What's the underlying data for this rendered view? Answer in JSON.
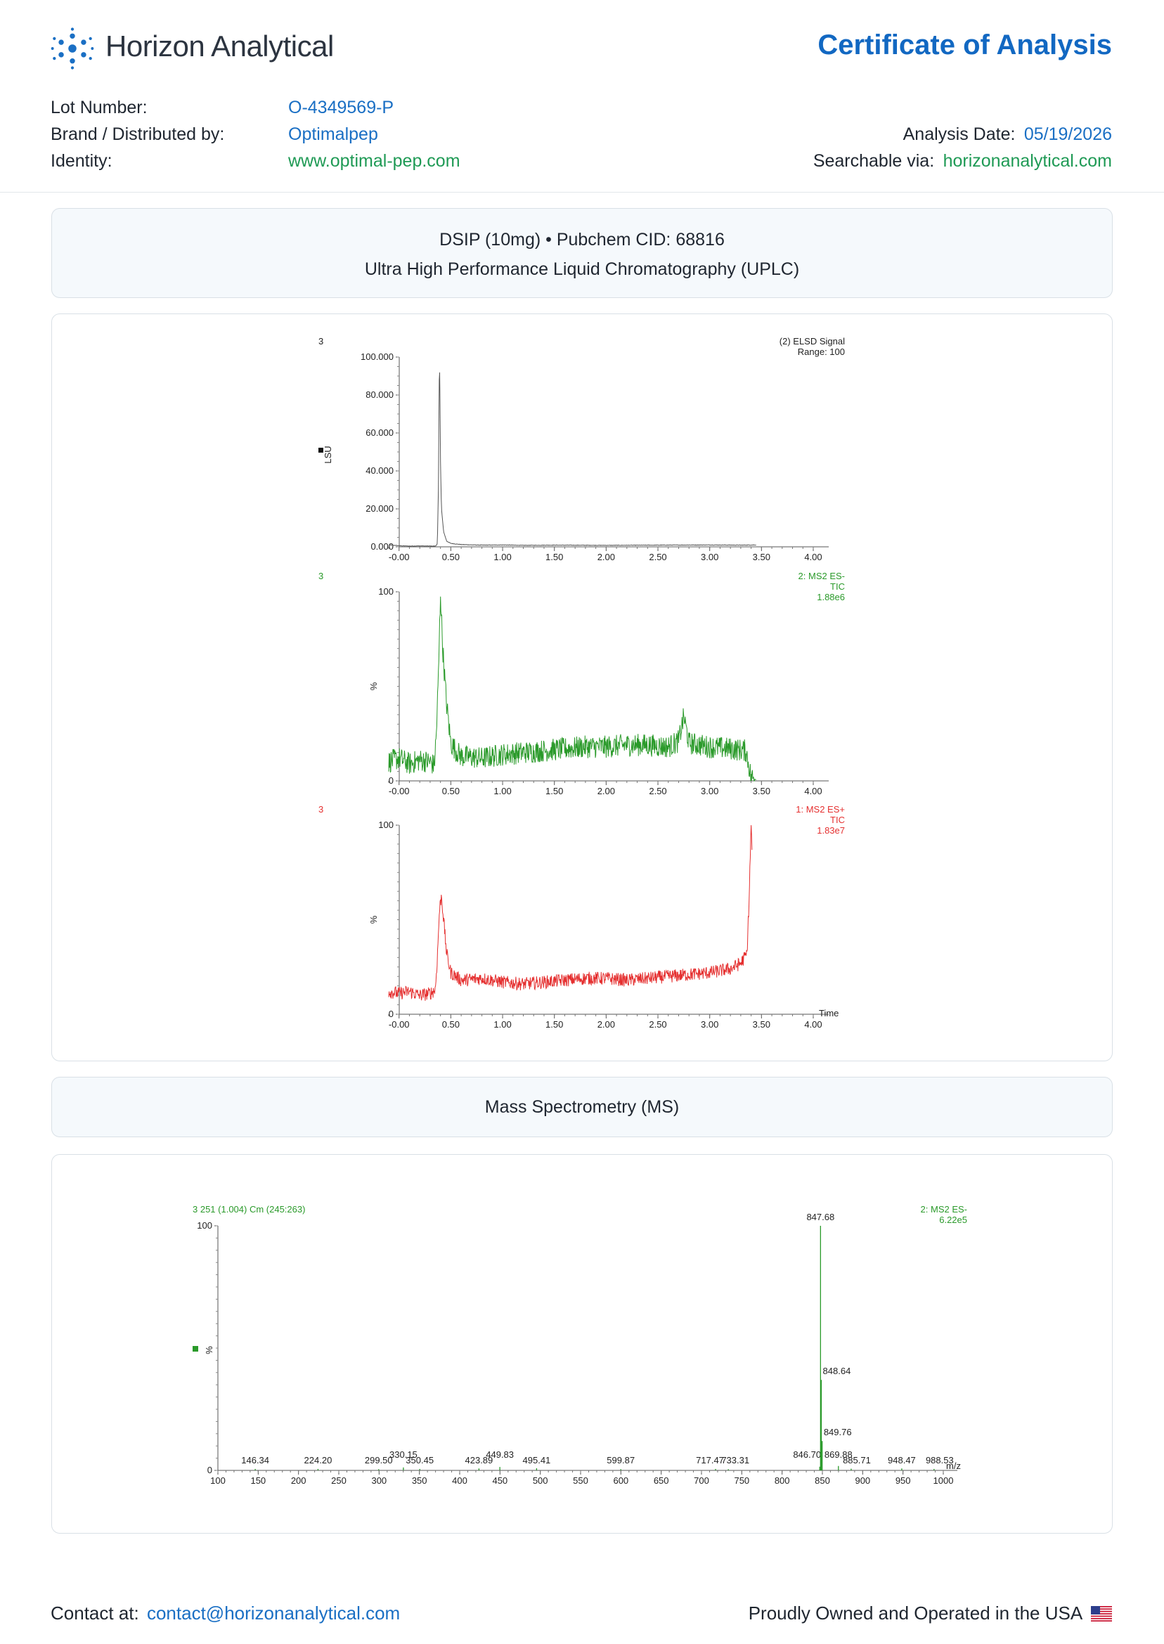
{
  "header": {
    "company": "Horizon Analytical",
    "doc_title": "Certificate of Analysis",
    "logo_icon": "molecule-dots-icon",
    "fields": {
      "lot_label": "Lot Number:",
      "lot_value": "O-4349569-P",
      "brand_label": "Brand / Distributed by:",
      "brand_value": "Optimalpep",
      "identity_label": "Identity:",
      "identity_value": "www.optimal-pep.com",
      "date_label": "Analysis Date:",
      "date_value": "05/19/2026",
      "search_label": "Searchable via:",
      "search_value": "horizonanalytical.com"
    }
  },
  "uplc": {
    "line1": "DSIP (10mg) • Pubchem CID: 68816",
    "line2": "Ultra High Performance Liquid Chromatography (UPLC)"
  },
  "ms_title": "Mass Spectrometry (MS)",
  "footer": {
    "contact_label": "Contact at:",
    "contact_email": "contact@horizonanalytical.com",
    "usa_text": "Proudly Owned and Operated in the USA",
    "flag_icon": "us-flag-icon"
  },
  "colors": {
    "accent_blue": "#1268c2",
    "green": "#1f9a55",
    "elsd_trace": "#555555",
    "ms_neg_trace": "#2a9a2a",
    "ms_pos_trace": "#e53030"
  },
  "chart_data": [
    {
      "type": "line",
      "id": "elsd",
      "scan_label": "3",
      "right_labels": [
        "(2) ELSD Signal",
        "Range: 100"
      ],
      "ylabel": "LSU",
      "xlim": [
        -0.1,
        4.0
      ],
      "ylim": [
        0,
        100
      ],
      "x_ticks": [
        "-0.00",
        "0.50",
        "1.00",
        "1.50",
        "2.00",
        "2.50",
        "3.00",
        "3.50",
        "4.00"
      ],
      "y_ticks": [
        "0.000",
        "20.000",
        "40.000",
        "60.000",
        "80.000",
        "100.000"
      ],
      "points": [
        [
          -0.1,
          1.0
        ],
        [
          0.0,
          0.6
        ],
        [
          0.1,
          0.4
        ],
        [
          0.2,
          0.5
        ],
        [
          0.3,
          0.4
        ],
        [
          0.35,
          0.4
        ],
        [
          0.37,
          1.5
        ],
        [
          0.38,
          30
        ],
        [
          0.385,
          70
        ],
        [
          0.39,
          100
        ],
        [
          0.395,
          80
        ],
        [
          0.4,
          45
        ],
        [
          0.41,
          20
        ],
        [
          0.43,
          8
        ],
        [
          0.46,
          3
        ],
        [
          0.5,
          1.8
        ],
        [
          0.6,
          1.2
        ],
        [
          0.8,
          0.9
        ],
        [
          1.0,
          1.0
        ],
        [
          1.2,
          0.8
        ],
        [
          1.5,
          0.9
        ],
        [
          2.0,
          0.8
        ],
        [
          2.5,
          0.9
        ],
        [
          3.0,
          1.0
        ],
        [
          3.3,
          0.9
        ],
        [
          3.45,
          1.0
        ]
      ]
    },
    {
      "type": "line",
      "id": "ms-neg-tic",
      "scan_label": "3",
      "right_labels": [
        "2: MS2 ES-",
        "TIC",
        "1.88e6"
      ],
      "ylabel": "%",
      "xlim": [
        -0.1,
        4.0
      ],
      "ylim": [
        0,
        100
      ],
      "x_ticks": [
        "-0.00",
        "0.50",
        "1.00",
        "1.50",
        "2.00",
        "2.50",
        "3.00",
        "3.50",
        "4.00"
      ],
      "y_ticks": [
        "0",
        "100"
      ],
      "points": [
        [
          -0.1,
          10
        ],
        [
          0.0,
          12
        ],
        [
          0.1,
          9
        ],
        [
          0.2,
          11
        ],
        [
          0.3,
          10
        ],
        [
          0.34,
          8
        ],
        [
          0.36,
          25
        ],
        [
          0.38,
          55
        ],
        [
          0.4,
          100
        ],
        [
          0.42,
          72
        ],
        [
          0.44,
          55
        ],
        [
          0.46,
          40
        ],
        [
          0.48,
          30
        ],
        [
          0.5,
          20
        ],
        [
          0.55,
          16
        ],
        [
          0.6,
          13
        ],
        [
          0.8,
          12
        ],
        [
          1.0,
          14
        ],
        [
          1.2,
          15
        ],
        [
          1.4,
          16
        ],
        [
          1.6,
          17
        ],
        [
          1.8,
          18
        ],
        [
          2.0,
          18
        ],
        [
          2.2,
          19
        ],
        [
          2.4,
          19
        ],
        [
          2.6,
          18
        ],
        [
          2.7,
          21
        ],
        [
          2.75,
          34
        ],
        [
          2.8,
          20
        ],
        [
          3.0,
          18
        ],
        [
          3.2,
          17
        ],
        [
          3.35,
          16
        ],
        [
          3.4,
          2
        ],
        [
          3.45,
          0.5
        ]
      ],
      "noise_amplitude": 6
    },
    {
      "type": "line",
      "id": "ms-pos-tic",
      "scan_label": "3",
      "right_labels": [
        "1: MS2 ES+",
        "TIC",
        "1.83e7"
      ],
      "ylabel": "%",
      "xlabel": "Time",
      "xlim": [
        -0.1,
        4.0
      ],
      "ylim": [
        0,
        100
      ],
      "x_ticks": [
        "-0.00",
        "0.50",
        "1.00",
        "1.50",
        "2.00",
        "2.50",
        "3.00",
        "3.50",
        "4.00"
      ],
      "y_ticks": [
        "0",
        "100"
      ],
      "points": [
        [
          -0.1,
          12
        ],
        [
          0.0,
          11
        ],
        [
          0.1,
          12
        ],
        [
          0.2,
          10
        ],
        [
          0.3,
          11
        ],
        [
          0.35,
          13
        ],
        [
          0.37,
          30
        ],
        [
          0.39,
          55
        ],
        [
          0.41,
          63
        ],
        [
          0.43,
          50
        ],
        [
          0.46,
          32
        ],
        [
          0.5,
          22
        ],
        [
          0.6,
          18
        ],
        [
          0.8,
          19
        ],
        [
          1.0,
          17
        ],
        [
          1.2,
          16
        ],
        [
          1.4,
          17
        ],
        [
          1.6,
          18
        ],
        [
          1.8,
          19
        ],
        [
          2.0,
          19
        ],
        [
          2.2,
          18
        ],
        [
          2.4,
          19
        ],
        [
          2.6,
          20
        ],
        [
          2.8,
          21
        ],
        [
          3.0,
          22
        ],
        [
          3.2,
          24
        ],
        [
          3.3,
          27
        ],
        [
          3.36,
          32
        ],
        [
          3.38,
          60
        ],
        [
          3.4,
          100
        ],
        [
          3.41,
          85
        ]
      ],
      "noise_amplitude": 3.5
    },
    {
      "type": "bar",
      "id": "ms-spectrum",
      "title": "3 251 (1.004) Cm (245:263)",
      "right_labels": [
        "2: MS2 ES-",
        "6.22e5"
      ],
      "ylabel": "%",
      "xlabel": "m/z",
      "xlim": [
        100,
        1000
      ],
      "ylim": [
        0,
        100
      ],
      "x_ticks": [
        "100",
        "150",
        "200",
        "250",
        "300",
        "350",
        "400",
        "450",
        "500",
        "550",
        "600",
        "650",
        "700",
        "750",
        "800",
        "850",
        "900",
        "950",
        "1000"
      ],
      "y_ticks": [
        "0",
        "100"
      ],
      "peaks": [
        {
          "mz": 146.34,
          "label": "146.34",
          "intensity": 0.6
        },
        {
          "mz": 224.2,
          "label": "224.20",
          "intensity": 0.6
        },
        {
          "mz": 299.5,
          "label": "299.50",
          "intensity": 0.5
        },
        {
          "mz": 330.15,
          "label": "330.15",
          "intensity": 1.2
        },
        {
          "mz": 350.45,
          "label": "350.45",
          "intensity": 0.6
        },
        {
          "mz": 423.89,
          "label": "423.89",
          "intensity": 0.8
        },
        {
          "mz": 449.83,
          "label": "449.83",
          "intensity": 1.4
        },
        {
          "mz": 495.41,
          "label": "495.41",
          "intensity": 0.9
        },
        {
          "mz": 599.87,
          "label": "599.87",
          "intensity": 0.5
        },
        {
          "mz": 717.47,
          "label": "717.47",
          "intensity": 0.6
        },
        {
          "mz": 733.31,
          "label": "733.31",
          "intensity": 0.5
        },
        {
          "mz": 846.7,
          "label": "846.70",
          "intensity": 1.5
        },
        {
          "mz": 847.68,
          "label": "847.68",
          "intensity": 100
        },
        {
          "mz": 848.64,
          "label": "848.64",
          "intensity": 37
        },
        {
          "mz": 849.76,
          "label": "849.76",
          "intensity": 12
        },
        {
          "mz": 869.88,
          "label": "869.88",
          "intensity": 1.8
        },
        {
          "mz": 885.71,
          "label": "885.71",
          "intensity": 0.7
        },
        {
          "mz": 948.47,
          "label": "948.47",
          "intensity": 0.8
        },
        {
          "mz": 988.53,
          "label": "988.53",
          "intensity": 0.6
        }
      ]
    }
  ]
}
